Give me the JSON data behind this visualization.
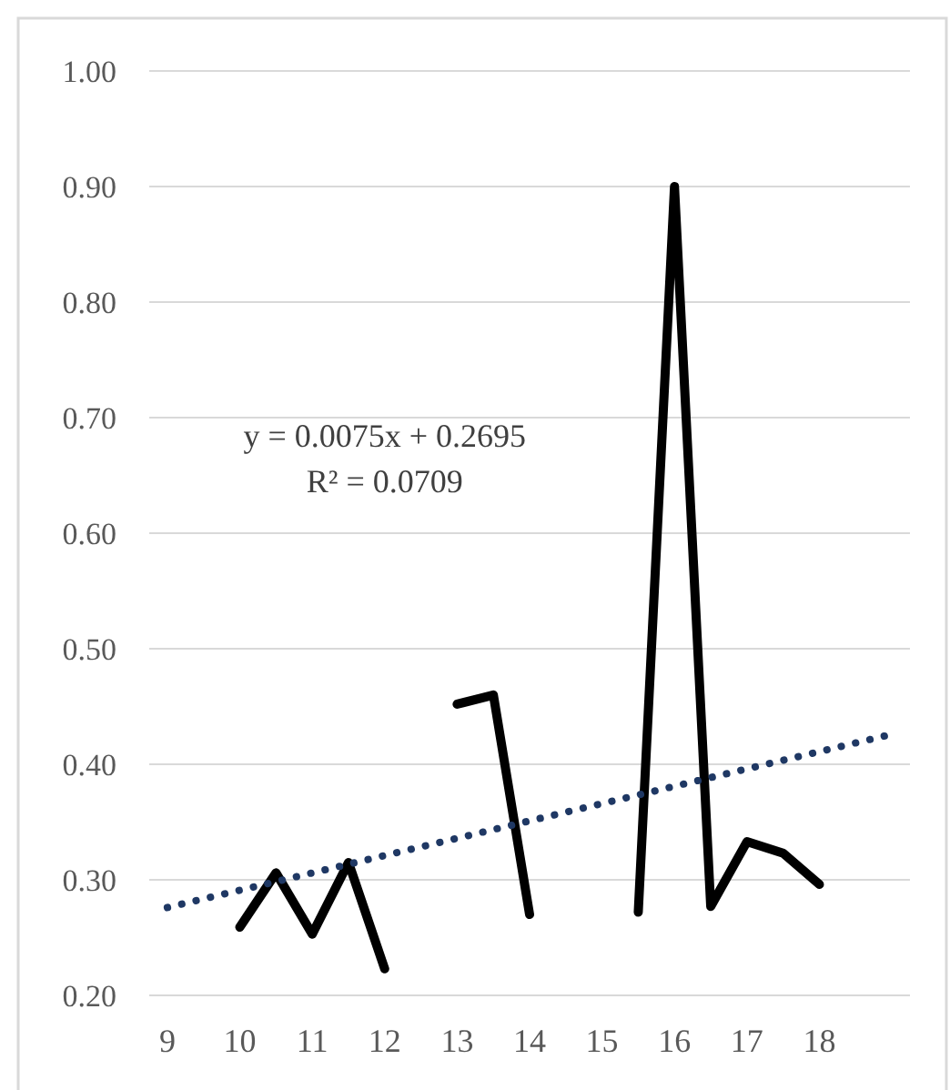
{
  "chart_data": {
    "type": "line",
    "x": [
      10,
      10.5,
      11,
      11.5,
      12,
      12.5,
      13,
      13.5,
      14,
      14.5,
      15,
      15.5,
      16,
      16.5,
      17,
      17.5,
      18
    ],
    "series": [
      {
        "color": "#000000",
        "values": [
          0.259,
          0.306,
          0.253,
          0.315,
          0.223,
          null,
          0.452,
          0.46,
          0.27,
          null,
          null,
          0.272,
          0.9,
          0.277,
          0.333,
          0.323,
          0.296
        ]
      },
      {
        "type": "line",
        "color": "#1f3864",
        "line_style": "dotted",
        "x": [
          9,
          19
        ],
        "values": [
          0.276,
          0.426
        ]
      }
    ],
    "xlim": [
      8.75,
      19.25
    ],
    "xticks": [
      9,
      10,
      11,
      12,
      13,
      14,
      15,
      16,
      17,
      18
    ],
    "ylim": [
      0.2,
      1.0
    ],
    "yticks": [
      {
        "value": 0.2,
        "label": "0.20"
      },
      {
        "value": 0.3,
        "label": "0.30"
      },
      {
        "value": 0.4,
        "label": "0.40"
      },
      {
        "value": 0.5,
        "label": "0.50"
      },
      {
        "value": 0.6,
        "label": "0.60"
      },
      {
        "value": 0.7,
        "label": "0.70"
      },
      {
        "value": 0.8,
        "label": "0.80"
      },
      {
        "value": 0.9,
        "label": "0.90"
      },
      {
        "value": 1.0,
        "label": "1.00"
      }
    ],
    "grid": "y",
    "line_style": "solid",
    "marker": "none",
    "annotations": [
      "y = 0.0075x + 0.2695",
      "R² = 0.0709"
    ]
  }
}
